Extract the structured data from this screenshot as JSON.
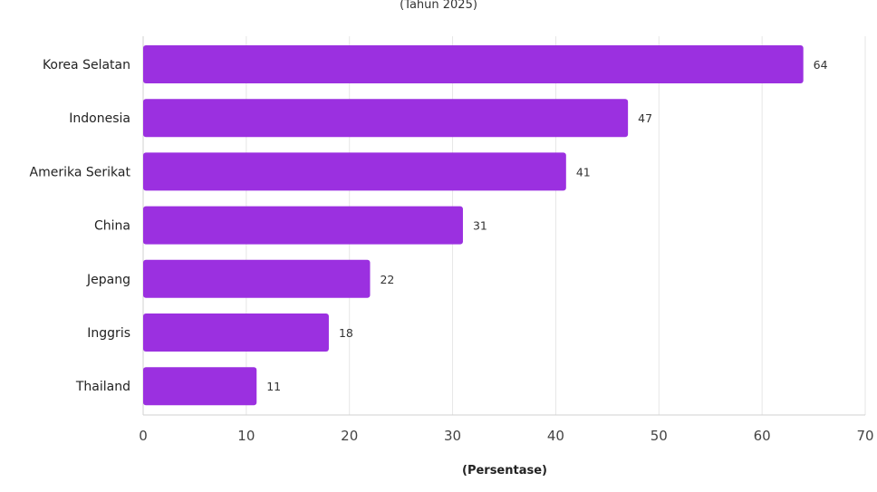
{
  "chart_data": {
    "type": "bar",
    "orientation": "horizontal",
    "subtitle": "(Tahun 2025)",
    "xlabel": "(Persentase)",
    "categories": [
      "Korea Selatan",
      "Indonesia",
      "Amerika Serikat",
      "China",
      "Jepang",
      "Inggris",
      "Thailand"
    ],
    "values": [
      64,
      47,
      41,
      31,
      22,
      18,
      11
    ],
    "xlim": [
      0,
      70
    ],
    "xticks": [
      "0",
      "10",
      "20",
      "30",
      "40",
      "50",
      "60",
      "70"
    ],
    "grid": true,
    "bar_color": "#9b30e0"
  }
}
